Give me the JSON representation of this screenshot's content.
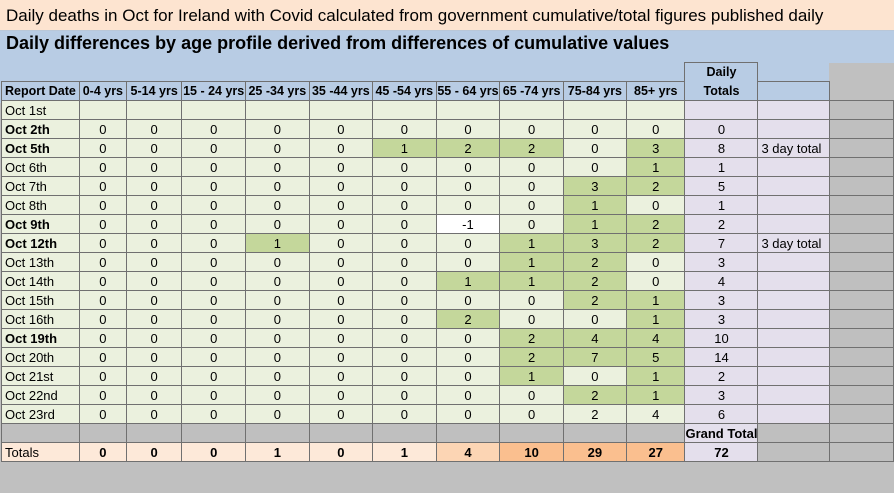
{
  "title_line1": "Daily deaths in Oct for Ireland with Covid calculated from government cumulative/total figures published daily",
  "title_line2": "Daily differences by age profile derived from differences of cumulative values",
  "daily_totals_header": [
    "Daily",
    "Totals"
  ],
  "columns": [
    "Report Date",
    "0-4 yrs",
    "5-14 yrs",
    "15 - 24 yrs",
    "25 -34 yrs",
    "35 -44 yrs",
    "45 -54 yrs",
    "55 - 64 yrs",
    "65 -74 yrs",
    "75-84 yrs",
    "85+ yrs"
  ],
  "rows": [
    {
      "date": "Oct 1st",
      "bold": false,
      "values": [
        "",
        "",
        "",
        "",
        "",
        "",
        "",
        "",
        "",
        ""
      ],
      "total": "",
      "note": ""
    },
    {
      "date": "Oct 2th",
      "bold": true,
      "values": [
        "0",
        "0",
        "0",
        "0",
        "0",
        "0",
        "0",
        "0",
        "0",
        "0"
      ],
      "total": "0",
      "note": ""
    },
    {
      "date": "Oct 5th",
      "bold": true,
      "values": [
        "0",
        "0",
        "0",
        "0",
        "0",
        "1",
        "2",
        "2",
        "0",
        "3"
      ],
      "total": "8",
      "note": "3 day total"
    },
    {
      "date": "Oct 6th",
      "bold": false,
      "values": [
        "0",
        "0",
        "0",
        "0",
        "0",
        "0",
        "0",
        "0",
        "0",
        "1"
      ],
      "total": "1",
      "note": ""
    },
    {
      "date": "Oct 7th",
      "bold": false,
      "values": [
        "0",
        "0",
        "0",
        "0",
        "0",
        "0",
        "0",
        "0",
        "3",
        "2"
      ],
      "total": "5",
      "note": ""
    },
    {
      "date": "Oct 8th",
      "bold": false,
      "values": [
        "0",
        "0",
        "0",
        "0",
        "0",
        "0",
        "0",
        "0",
        "1",
        "0"
      ],
      "total": "1",
      "note": ""
    },
    {
      "date": "Oct 9th",
      "bold": true,
      "values": [
        "0",
        "0",
        "0",
        "0",
        "0",
        "0",
        "-1",
        "0",
        "1",
        "2"
      ],
      "total": "2",
      "note": ""
    },
    {
      "date": "Oct 12th",
      "bold": true,
      "values": [
        "0",
        "0",
        "0",
        "1",
        "0",
        "0",
        "0",
        "1",
        "3",
        "2"
      ],
      "total": "7",
      "note": "3 day total"
    },
    {
      "date": "Oct 13th",
      "bold": false,
      "values": [
        "0",
        "0",
        "0",
        "0",
        "0",
        "0",
        "0",
        "1",
        "2",
        "0"
      ],
      "total": "3",
      "note": ""
    },
    {
      "date": "Oct 14th",
      "bold": false,
      "values": [
        "0",
        "0",
        "0",
        "0",
        "0",
        "0",
        "1",
        "1",
        "2",
        "0"
      ],
      "total": "4",
      "note": ""
    },
    {
      "date": "Oct 15th",
      "bold": false,
      "values": [
        "0",
        "0",
        "0",
        "0",
        "0",
        "0",
        "0",
        "0",
        "2",
        "1"
      ],
      "total": "3",
      "note": ""
    },
    {
      "date": "Oct 16th",
      "bold": false,
      "values": [
        "0",
        "0",
        "0",
        "0",
        "0",
        "0",
        "2",
        "0",
        "0",
        "1"
      ],
      "total": "3",
      "note": ""
    },
    {
      "date": "Oct 19th",
      "bold": true,
      "values": [
        "0",
        "0",
        "0",
        "0",
        "0",
        "0",
        "0",
        "2",
        "4",
        "4"
      ],
      "total": "10",
      "note": ""
    },
    {
      "date": "Oct 20th",
      "bold": false,
      "values": [
        "0",
        "0",
        "0",
        "0",
        "0",
        "0",
        "0",
        "2",
        "7",
        "5"
      ],
      "total": "14",
      "note": ""
    },
    {
      "date": "Oct 21st",
      "bold": false,
      "values": [
        "0",
        "0",
        "0",
        "0",
        "0",
        "0",
        "0",
        "1",
        "0",
        "1"
      ],
      "total": "2",
      "note": ""
    },
    {
      "date": "Oct 22nd",
      "bold": false,
      "values": [
        "0",
        "0",
        "0",
        "0",
        "0",
        "0",
        "0",
        "0",
        "2",
        "1"
      ],
      "total": "3",
      "note": ""
    },
    {
      "date": "Oct 23rd",
      "bold": false,
      "values": [
        "0",
        "0",
        "0",
        "0",
        "0",
        "0",
        "0",
        "0",
        "2",
        "4"
      ],
      "total": "6",
      "note": ""
    }
  ],
  "grand_total_label": "Grand Total",
  "totals": {
    "label": "Totals",
    "values": [
      "0",
      "0",
      "0",
      "1",
      "0",
      "1",
      "4",
      "10",
      "29",
      "27"
    ],
    "grand_total": "72"
  }
}
